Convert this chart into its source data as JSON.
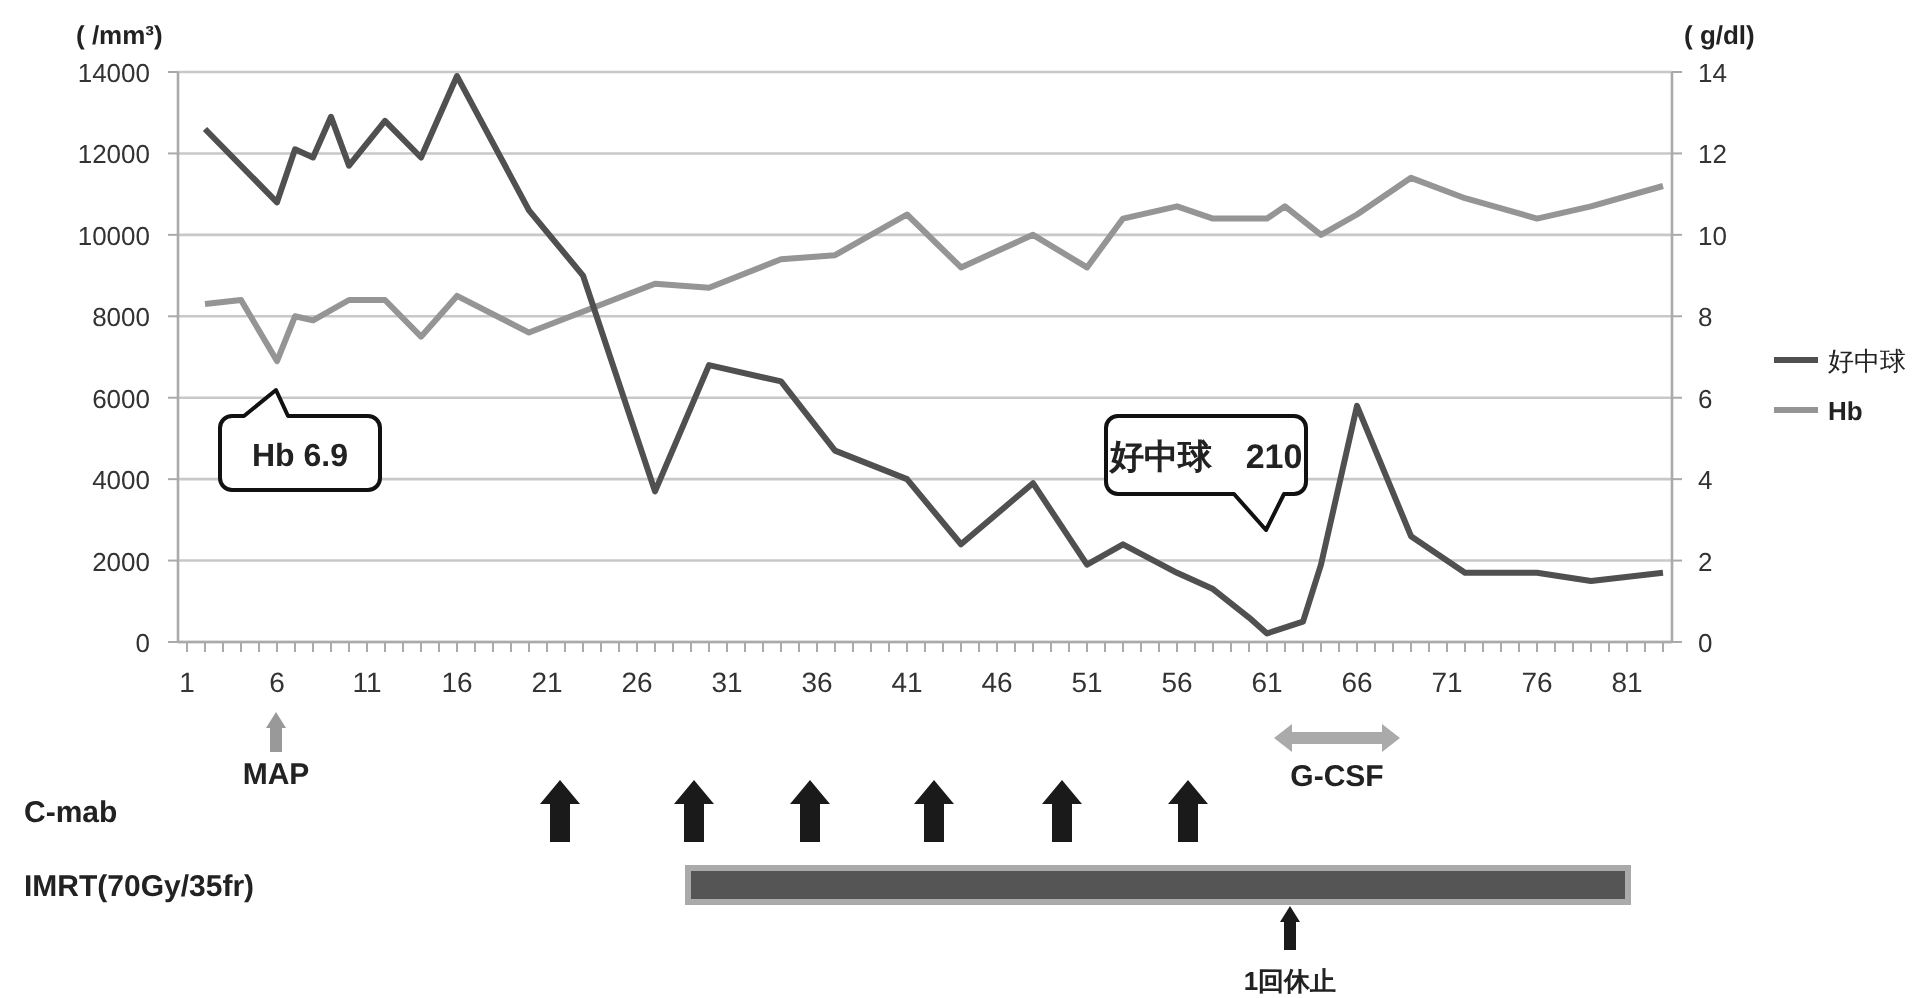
{
  "chart_data": {
    "type": "line",
    "ylabel": "( /mm³)",
    "y2label": "( g/dl)",
    "xlim": [
      0.5,
      83.5
    ],
    "xticks": [
      1,
      {
        "value": 2,
        "label": null
      },
      {
        "value": 3,
        "label": null
      },
      {
        "value": 4,
        "label": null
      },
      {
        "value": 5,
        "label": null
      },
      6,
      {
        "value": 7,
        "label": null
      },
      {
        "value": 8,
        "label": null
      },
      {
        "value": 9,
        "label": null
      },
      {
        "value": 10,
        "label": null
      },
      11,
      {
        "value": 12,
        "label": null
      },
      {
        "value": 13,
        "label": null
      },
      {
        "value": 14,
        "label": null
      },
      {
        "value": 15,
        "label": null
      },
      16,
      {
        "value": 17,
        "label": null
      },
      {
        "value": 18,
        "label": null
      },
      {
        "value": 19,
        "label": null
      },
      {
        "value": 20,
        "label": null
      },
      21,
      {
        "value": 22,
        "label": null
      },
      {
        "value": 23,
        "label": null
      },
      {
        "value": 24,
        "label": null
      },
      {
        "value": 25,
        "label": null
      },
      26,
      {
        "value": 27,
        "label": null
      },
      {
        "value": 28,
        "label": null
      },
      {
        "value": 29,
        "label": null
      },
      {
        "value": 30,
        "label": null
      },
      31,
      {
        "value": 32,
        "label": null
      },
      {
        "value": 33,
        "label": null
      },
      {
        "value": 34,
        "label": null
      },
      {
        "value": 35,
        "label": null
      },
      36,
      {
        "value": 37,
        "label": null
      },
      {
        "value": 38,
        "label": null
      },
      {
        "value": 39,
        "label": null
      },
      {
        "value": 40,
        "label": null
      },
      41,
      {
        "value": 42,
        "label": null
      },
      {
        "value": 43,
        "label": null
      },
      {
        "value": 44,
        "label": null
      },
      {
        "value": 45,
        "label": null
      },
      46,
      {
        "value": 47,
        "label": null
      },
      {
        "value": 48,
        "label": null
      },
      {
        "value": 49,
        "label": null
      },
      {
        "value": 50,
        "label": null
      },
      51,
      {
        "value": 52,
        "label": null
      },
      {
        "value": 53,
        "label": null
      },
      {
        "value": 54,
        "label": null
      },
      {
        "value": 55,
        "label": null
      },
      56,
      {
        "value": 57,
        "label": null
      },
      {
        "value": 58,
        "label": null
      },
      {
        "value": 59,
        "label": null
      },
      {
        "value": 60,
        "label": null
      },
      61,
      {
        "value": 62,
        "label": null
      },
      {
        "value": 63,
        "label": null
      },
      {
        "value": 64,
        "label": null
      },
      {
        "value": 65,
        "label": null
      },
      66,
      {
        "value": 67,
        "label": null
      },
      {
        "value": 68,
        "label": null
      },
      {
        "value": 69,
        "label": null
      },
      {
        "value": 70,
        "label": null
      },
      71,
      {
        "value": 72,
        "label": null
      },
      {
        "value": 73,
        "label": null
      },
      {
        "value": 74,
        "label": null
      },
      {
        "value": 75,
        "label": null
      },
      76,
      {
        "value": 77,
        "label": null
      },
      {
        "value": 78,
        "label": null
      },
      {
        "value": 79,
        "label": null
      },
      {
        "value": 80,
        "label": null
      },
      81,
      {
        "value": 82,
        "label": null
      },
      {
        "value": 83,
        "label": null
      }
    ],
    "ylim": [
      0,
      14000
    ],
    "yticks": [
      0,
      2000,
      4000,
      6000,
      8000,
      10000,
      12000,
      14000
    ],
    "y2lim": [
      0,
      14
    ],
    "y2ticks": [
      0,
      2,
      4,
      6,
      8,
      10,
      12,
      14
    ],
    "grid": "y",
    "legend": "right",
    "marker": "none",
    "line_style": "solid",
    "series": [
      {
        "name": "好中球",
        "color": "#505050",
        "x": [
          2,
          6,
          7,
          8,
          9,
          10,
          12,
          14,
          16,
          20,
          23,
          27,
          30,
          34,
          37,
          41,
          44,
          48,
          51,
          53,
          56,
          58,
          60,
          61,
          63,
          64,
          66,
          69,
          72,
          76,
          79,
          83
        ],
        "values": [
          12600,
          10800,
          12100,
          11900,
          12900,
          11700,
          12800,
          11900,
          13900,
          10600,
          9000,
          3700,
          6800,
          6400,
          4700,
          4000,
          2400,
          3900,
          1900,
          2400,
          1700,
          1300,
          600,
          210,
          500,
          1900,
          5800,
          2600,
          1700,
          1700,
          1500,
          1700
        ]
      },
      {
        "name": "Hb",
        "color": "#959595",
        "axis": "y2",
        "x": [
          2,
          4,
          6,
          7,
          8,
          10,
          12,
          14,
          16,
          20,
          27,
          30,
          34,
          37,
          41,
          44,
          48,
          51,
          53,
          56,
          58,
          61,
          62,
          64,
          66,
          69,
          72,
          76,
          79,
          83
        ],
        "values": [
          8.3,
          8.4,
          6.9,
          8.0,
          7.9,
          8.4,
          8.4,
          7.5,
          8.5,
          7.6,
          8.8,
          8.7,
          9.4,
          9.5,
          10.5,
          9.2,
          10.0,
          9.2,
          10.4,
          10.7,
          10.4,
          10.4,
          10.7,
          10.0,
          10.5,
          11.4,
          10.9,
          10.4,
          10.7,
          11.2
        ]
      }
    ],
    "annotations": [
      "Hb 6.9",
      "好中球　210",
      "MAP",
      "G-CSF",
      "C-mab",
      "IMRT(70Gy/35fr)",
      "1回休止"
    ]
  }
}
